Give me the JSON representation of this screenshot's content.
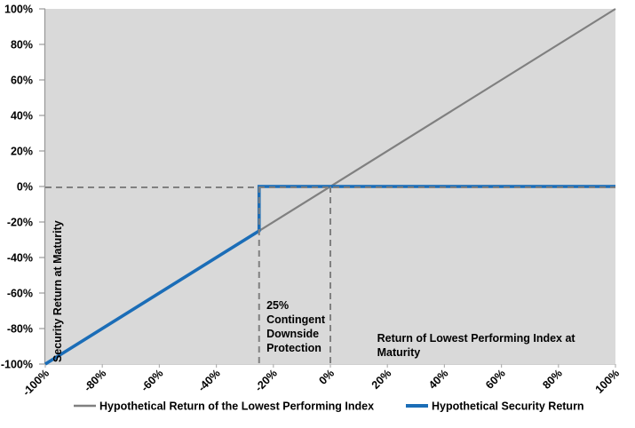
{
  "chart_data": {
    "type": "line",
    "title": "",
    "xlabel": "Return of Lowest Performing Index at Maturity",
    "ylabel": "Security Return at Maturity",
    "xlim": [
      -100,
      100
    ],
    "ylim": [
      -100,
      100
    ],
    "grid": false,
    "legend_position": "bottom",
    "plot_bg_color": "#D9D9D9",
    "axis_color": "#999999",
    "x_tick_values": [
      -100,
      -80,
      -60,
      -40,
      -20,
      0,
      20,
      40,
      60,
      80,
      100
    ],
    "x_tick_labels": [
      "-100%",
      "-80%",
      "-60%",
      "-40%",
      "-20%",
      "0%",
      "20%",
      "40%",
      "60%",
      "80%",
      "100%"
    ],
    "y_tick_values": [
      100,
      80,
      60,
      40,
      20,
      0,
      -20,
      -40,
      -60,
      -80,
      -100
    ],
    "y_tick_labels": [
      "100%",
      "80%",
      "60%",
      "40%",
      "20%",
      "0%",
      "-20%",
      "-40%",
      "-60%",
      "-80%",
      "-100%"
    ],
    "series": [
      {
        "name": "Hypothetical Return of the Lowest Performing Index",
        "color": "#808080",
        "stroke_width": 2.2,
        "points": [
          [
            -100,
            -100
          ],
          [
            100,
            100
          ]
        ]
      },
      {
        "name": "Hypothetical Security Return",
        "color": "#1B6DB7",
        "stroke_width": 3.6,
        "points": [
          [
            -100,
            -100
          ],
          [
            -25,
            -25
          ],
          [
            -25,
            0
          ],
          [
            100,
            0
          ]
        ]
      }
    ],
    "reference_lines": {
      "color": "#808080",
      "dash": "7 5",
      "stroke_width": 2,
      "horizontal": [
        {
          "y": 0,
          "x1": -100,
          "x2": 100
        }
      ],
      "vertical": [
        {
          "x": -25,
          "y1": -100,
          "y2": 0
        },
        {
          "x": 0,
          "y1": -100,
          "y2": 0
        }
      ]
    },
    "annotations": [
      {
        "id": "downside-protection-note",
        "x": -22.4,
        "y": -63.5,
        "lines": [
          "25%",
          "Contingent",
          "Downside",
          "Protection"
        ]
      },
      {
        "id": "x-axis-note",
        "x": 16.4,
        "y": -82,
        "lines": [
          "Return of Lowest Performing Index at",
          "Maturity"
        ]
      }
    ]
  }
}
